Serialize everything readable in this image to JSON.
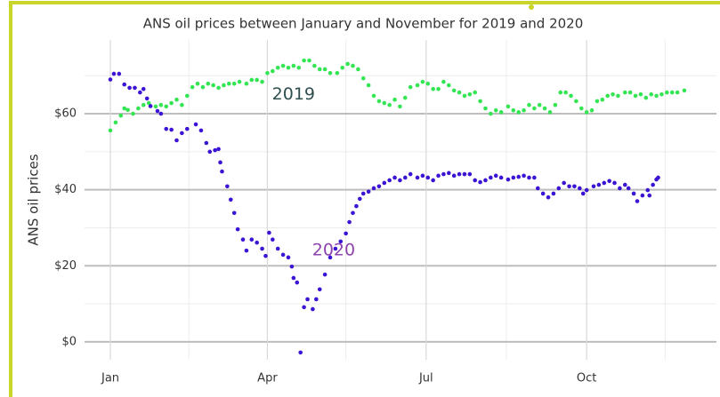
{
  "chart_data": {
    "type": "scatter",
    "title": "ANS oil prices between January and November for 2019 and 2020",
    "y_label": "ANS oil prices",
    "xlim": [
      -13.8,
      348.4
    ],
    "xticks": [
      {
        "value": 1,
        "label": "Jan"
      },
      {
        "value": 91,
        "label": "Apr"
      },
      {
        "value": 182,
        "label": "Jul"
      },
      {
        "value": 274,
        "label": "Oct"
      }
    ],
    "xticks_minor": [
      46,
      136,
      228,
      319
    ],
    "ylim": [
      -4.7,
      79.4
    ],
    "yticks": [
      {
        "value": 0,
        "label": "$0"
      },
      {
        "value": 20,
        "label": "$20"
      },
      {
        "value": 40,
        "label": "$40"
      },
      {
        "value": 60,
        "label": "$60"
      }
    ],
    "yticks_minor": [
      10,
      30,
      50,
      70
    ],
    "grid": true,
    "annotations": [
      {
        "text": "2019",
        "x": 106,
        "y": 65,
        "color": "#2f4f4f"
      },
      {
        "text": "2020",
        "x": 129,
        "y": 24,
        "color": "#8e44ad"
      }
    ],
    "series": [
      {
        "name": "2019",
        "color": "#34e553",
        "x": [
          1,
          4,
          7,
          9,
          11,
          14,
          17,
          20,
          23,
          27,
          30,
          33,
          36,
          39,
          42,
          45,
          48,
          51,
          54,
          57,
          60,
          63,
          66,
          69,
          72,
          75,
          79,
          82,
          85,
          88,
          91,
          94,
          97,
          100,
          103,
          106,
          109,
          112,
          115,
          118,
          121,
          124,
          127,
          131,
          134,
          137,
          140,
          143,
          146,
          149,
          152,
          155,
          158,
          161,
          164,
          167,
          170,
          173,
          177,
          180,
          183,
          186,
          189,
          192,
          195,
          198,
          201,
          204,
          207,
          210,
          213,
          216,
          219,
          222,
          225,
          229,
          232,
          235,
          238,
          241,
          244,
          247,
          250,
          253,
          256,
          259,
          262,
          265,
          268,
          271,
          274,
          277,
          280,
          283,
          286,
          289,
          292,
          296,
          299,
          302,
          305,
          308,
          311,
          314,
          317,
          320,
          323,
          326,
          330
        ],
        "values": [
          55.6,
          57.7,
          59.5,
          61.4,
          61,
          60,
          61.4,
          62.3,
          62.8,
          61.9,
          62.3,
          61.9,
          62.8,
          63.7,
          62.3,
          64.7,
          67,
          67.9,
          67,
          67.9,
          67.5,
          66.8,
          67.5,
          67.9,
          67.9,
          68.4,
          67.9,
          68.9,
          68.9,
          68.4,
          70.7,
          71.2,
          72.1,
          72.6,
          72.1,
          72.6,
          72.1,
          74,
          74,
          72.6,
          71.7,
          71.7,
          70.7,
          70.7,
          72.1,
          73.1,
          72.6,
          71.7,
          69.3,
          67.5,
          64.7,
          63.3,
          62.8,
          62.3,
          63.7,
          61.9,
          64.2,
          67,
          67.5,
          68.4,
          67.9,
          66.5,
          66.5,
          68.4,
          67.5,
          66.1,
          65.6,
          64.7,
          65.1,
          65.6,
          63.3,
          61.4,
          60,
          60.9,
          60.4,
          61.9,
          60.9,
          60.4,
          60.9,
          62.3,
          61.4,
          62.3,
          61.4,
          60.4,
          62.3,
          65.6,
          65.6,
          64.7,
          63.3,
          61.4,
          60.4,
          60.9,
          63.3,
          63.7,
          64.7,
          65.1,
          64.7,
          65.6,
          65.6,
          64.7,
          65.1,
          64.2,
          65.1,
          64.7,
          65.1,
          65.6,
          65.6,
          65.6,
          66.1
        ]
      },
      {
        "name": "2020",
        "color": "#3b14d4",
        "x": [
          1,
          3,
          6,
          9,
          12,
          15,
          18,
          20,
          22,
          24,
          28,
          30,
          33,
          36,
          39,
          42,
          45,
          50,
          53,
          56,
          58,
          61,
          63,
          64,
          65,
          68,
          70,
          72,
          74,
          77,
          79,
          82,
          85,
          88,
          90,
          92,
          94,
          97,
          100,
          103,
          105,
          106,
          108,
          110,
          112,
          114,
          117,
          119,
          121,
          124,
          127,
          130,
          133,
          136,
          138,
          140,
          142,
          144,
          146,
          149,
          152,
          155,
          158,
          161,
          164,
          167,
          170,
          173,
          177,
          180,
          183,
          186,
          189,
          192,
          195,
          198,
          201,
          204,
          207,
          210,
          213,
          216,
          219,
          222,
          225,
          229,
          232,
          235,
          238,
          241,
          244,
          246,
          249,
          252,
          255,
          258,
          261,
          264,
          267,
          270,
          272,
          274,
          278,
          281,
          284,
          287,
          290,
          293,
          296,
          298,
          301,
          303,
          306,
          309,
          310,
          312,
          314,
          315
        ],
        "values": [
          69,
          70.5,
          70.5,
          67.7,
          66.8,
          66.8,
          65.6,
          66.5,
          64,
          62,
          60.7,
          60,
          56,
          55.8,
          53,
          54.9,
          56,
          57.2,
          55.6,
          52.3,
          50,
          50.4,
          50.7,
          47.2,
          44.8,
          40.9,
          37.4,
          33.9,
          29.6,
          26.9,
          24,
          26.9,
          26.1,
          24.5,
          22.6,
          28.7,
          26.9,
          24.5,
          22.9,
          22.2,
          19.8,
          16.8,
          15.6,
          -2.8,
          9.1,
          11.2,
          8.6,
          11.2,
          13.8,
          17.7,
          22.2,
          24.5,
          26.4,
          28.5,
          31.5,
          33.9,
          35.7,
          37.6,
          39,
          39.5,
          40.4,
          40.9,
          41.8,
          42.5,
          43.2,
          42.5,
          43.2,
          44.1,
          43.2,
          43.7,
          43.2,
          42.5,
          43.7,
          44.1,
          44.4,
          43.7,
          44.1,
          44.1,
          44.1,
          42.5,
          42,
          42.5,
          43.2,
          43.7,
          43.2,
          42.7,
          43.2,
          43.4,
          43.7,
          43.2,
          43.2,
          40.4,
          39,
          38,
          39,
          40.4,
          41.8,
          40.9,
          40.9,
          40.4,
          39,
          39.9,
          40.9,
          41.3,
          41.8,
          42.3,
          41.8,
          40.4,
          41.3,
          40.4,
          39,
          37,
          38.5,
          39.9,
          38.5,
          41.3,
          42.7,
          43.2
        ]
      }
    ]
  }
}
